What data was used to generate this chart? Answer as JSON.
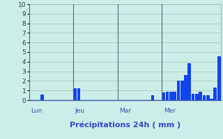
{
  "xlabel": "Précipitations 24h ( mm )",
  "ylim": [
    0,
    10
  ],
  "yticks": [
    0,
    1,
    2,
    3,
    4,
    5,
    6,
    7,
    8,
    9,
    10
  ],
  "background_color": "#cceee8",
  "bar_color": "#1144ee",
  "grid_color": "#aabbbb",
  "day_line_color": "#556677",
  "bar_values": [
    0,
    0,
    0,
    0.55,
    0,
    0,
    0,
    0,
    0,
    0,
    0,
    0,
    1.2,
    1.2,
    0,
    0,
    0,
    0,
    0,
    0,
    0,
    0,
    0,
    0,
    0,
    0,
    0,
    0,
    0,
    0,
    0,
    0,
    0,
    0.5,
    0,
    0,
    0.8,
    0.85,
    0.85,
    0.85,
    2.0,
    2.0,
    2.6,
    3.85,
    0.65,
    0.65,
    0.85,
    0.5,
    0.5,
    0.15,
    1.3,
    4.6
  ],
  "day_labels": [
    "Lun",
    "Jeu",
    "Mar",
    "Mer"
  ],
  "day_positions": [
    0,
    12,
    24,
    36
  ],
  "xlabel_color": "#3344cc",
  "xlabel_fontsize": 8,
  "ytick_fontsize": 6.5,
  "day_label_fontsize": 6.5,
  "day_label_color": "#3355bb",
  "spine_color": "#3366aa",
  "axis_bottom_color": "#3355aa"
}
